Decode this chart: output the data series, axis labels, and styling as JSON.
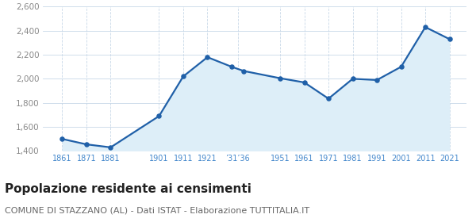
{
  "years": [
    1861,
    1871,
    1881,
    1901,
    1911,
    1921,
    1931,
    1936,
    1951,
    1961,
    1971,
    1981,
    1991,
    2001,
    2011,
    2021
  ],
  "values": [
    1500,
    1455,
    1430,
    1690,
    2020,
    2180,
    2100,
    2065,
    2005,
    1970,
    1835,
    2000,
    1990,
    2100,
    2430,
    2330
  ],
  "ylim": [
    1400,
    2600
  ],
  "yticks": [
    1400,
    1600,
    1800,
    2000,
    2200,
    2400,
    2600
  ],
  "ytick_labels": [
    "1,400",
    "1,600",
    "1,800",
    "2,000",
    "2,200",
    "2,400",
    "2,600"
  ],
  "x_tick_positions": [
    1861,
    1871,
    1881,
    1901,
    1911,
    1921,
    1933.5,
    1951,
    1961,
    1971,
    1981,
    1991,
    2001,
    2011,
    2021
  ],
  "x_tick_labels": [
    "1861",
    "1871",
    "1881",
    "1901",
    "1911",
    "1921",
    "’31’36",
    "1951",
    "1961",
    "1971",
    "1981",
    "1991",
    "2001",
    "2011",
    "2021"
  ],
  "xlim_left": 1853,
  "xlim_right": 2028,
  "line_color": "#2060a8",
  "fill_color": "#ddeef8",
  "marker_color": "#2060a8",
  "grid_color": "#c8d8e8",
  "tick_color": "#4488cc",
  "ytick_color": "#888888",
  "title": "Popolazione residente ai censimenti",
  "subtitle": "COMUNE DI STAZZANO (AL) - Dati ISTAT - Elaborazione TUTTITALIA.IT",
  "title_fontsize": 11,
  "subtitle_fontsize": 8,
  "bg_color": "#ffffff"
}
